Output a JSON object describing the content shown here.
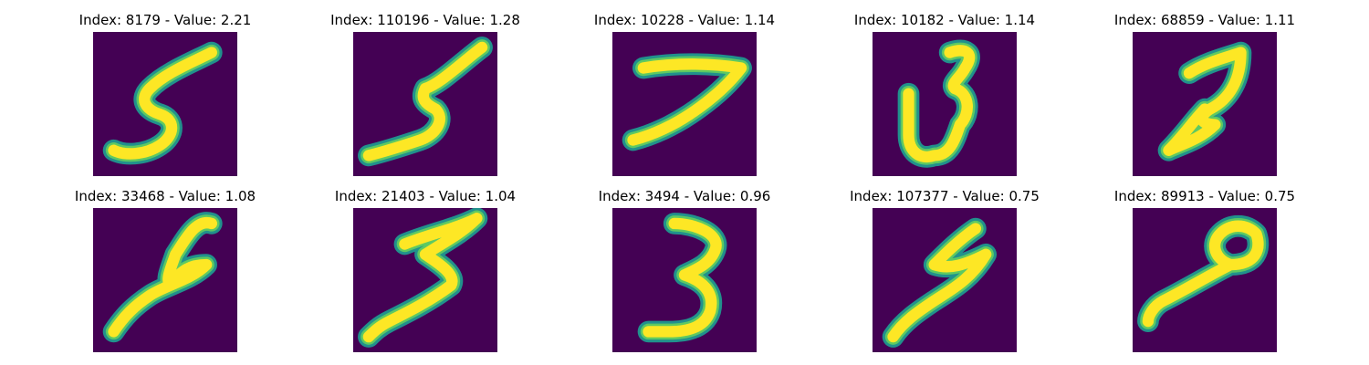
{
  "colors": {
    "background": "#440154",
    "stroke_edge": "#21918c",
    "stroke_mid": "#5ec962",
    "stroke_core": "#fde725"
  },
  "panels": [
    {
      "title": "Index: 8179 - Value: 2.21",
      "digit": "5"
    },
    {
      "title": "Index: 110196 - Value: 1.28",
      "digit": "5"
    },
    {
      "title": "Index: 10228 - Value: 1.14",
      "digit": "7"
    },
    {
      "title": "Index: 10182 - Value: 1.14",
      "digit": "3"
    },
    {
      "title": "Index: 68859 - Value: 1.11",
      "digit": "9"
    },
    {
      "title": "Index: 33468 - Value: 1.08",
      "digit": "2"
    },
    {
      "title": "Index: 21403 - Value: 1.04",
      "digit": "3"
    },
    {
      "title": "Index: 3494 - Value: 0.96",
      "digit": "3"
    },
    {
      "title": "Index: 107377 - Value: 0.75",
      "digit": "5"
    },
    {
      "title": "Index: 89913 - Value: 0.75",
      "digit": "9"
    }
  ]
}
